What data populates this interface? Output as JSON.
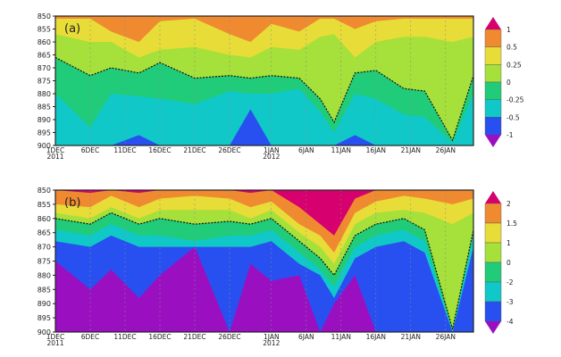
{
  "chart_data": [
    {
      "type": "area",
      "panel_label": "(a)",
      "ylabel_ticks": [
        "850",
        "855",
        "860",
        "865",
        "870",
        "875",
        "880",
        "885",
        "890",
        "895",
        "900"
      ],
      "ylim": [
        850,
        900
      ],
      "y_inverted": true,
      "xlim_days": [
        0,
        60
      ],
      "xticks": [
        {
          "day": 0,
          "label": "1DEC",
          "sub": "2011"
        },
        {
          "day": 5,
          "label": "6DEC"
        },
        {
          "day": 10,
          "label": "11DEC"
        },
        {
          "day": 15,
          "label": "16DEC"
        },
        {
          "day": 20,
          "label": "21DEC"
        },
        {
          "day": 25,
          "label": "26DEC"
        },
        {
          "day": 31,
          "label": "1JAN",
          "sub": "2012"
        },
        {
          "day": 36,
          "label": "6JAN"
        },
        {
          "day": 41,
          "label": "11JAN"
        },
        {
          "day": 46,
          "label": "16JAN"
        },
        {
          "day": 51,
          "label": "21JAN"
        },
        {
          "day": 56,
          "label": "26JAN"
        }
      ],
      "colorbar_labels": [
        "1",
        "0.5",
        "0.25",
        "0",
        "-0.25",
        "-0.5",
        "-1"
      ],
      "band_colors": [
        "#f08a30",
        "#e8dc38",
        "#a6e03a",
        "#20cc7a",
        "#10c8c8",
        "#2850f0"
      ],
      "x_days": [
        0,
        5,
        8,
        12,
        15,
        20,
        25,
        28,
        31,
        35,
        38,
        40,
        43,
        46,
        50,
        53,
        57,
        60
      ],
      "zero_line_index": 2,
      "boundaries": [
        [
          851,
          851,
          856,
          860,
          852,
          851,
          857,
          860,
          853,
          856,
          851,
          851,
          855,
          852,
          851,
          851,
          851,
          851
        ],
        [
          857,
          860,
          860,
          866,
          863,
          862,
          865,
          866,
          862,
          863,
          858,
          857,
          866,
          860,
          858,
          858,
          860,
          858
        ],
        [
          866,
          873,
          870,
          872,
          868,
          874,
          873,
          874,
          873,
          874,
          882,
          891,
          872,
          871,
          878,
          879,
          898,
          873
        ],
        [
          880,
          893,
          880,
          881,
          882,
          884,
          879,
          880,
          880,
          878,
          887,
          895,
          880,
          882,
          888,
          889,
          899,
          880
        ],
        [
          900,
          900,
          900,
          896,
          900,
          900,
          900,
          886,
          900,
          900,
          900,
          900,
          896,
          900,
          900,
          900,
          900,
          900
        ]
      ]
    },
    {
      "type": "area",
      "panel_label": "(b)",
      "ylabel_ticks": [
        "850",
        "855",
        "860",
        "865",
        "870",
        "875",
        "880",
        "885",
        "890",
        "895",
        "900"
      ],
      "ylim": [
        850,
        900
      ],
      "y_inverted": true,
      "xlim_days": [
        0,
        60
      ],
      "xticks": [
        {
          "day": 0,
          "label": "1DEC",
          "sub": "2011"
        },
        {
          "day": 5,
          "label": "6DEC"
        },
        {
          "day": 10,
          "label": "11DEC"
        },
        {
          "day": 15,
          "label": "16DEC"
        },
        {
          "day": 20,
          "label": "21DEC"
        },
        {
          "day": 25,
          "label": "26DEC"
        },
        {
          "day": 31,
          "label": "1JAN",
          "sub": "2012"
        },
        {
          "day": 36,
          "label": "6JAN"
        },
        {
          "day": 41,
          "label": "11JAN"
        },
        {
          "day": 46,
          "label": "16JAN"
        },
        {
          "day": 51,
          "label": "21JAN"
        },
        {
          "day": 56,
          "label": "26JAN"
        }
      ],
      "colorbar_labels": [
        "2",
        "1.5",
        "1",
        "0",
        "-2",
        "-3",
        "-4"
      ],
      "band_colors": [
        "#d6006e",
        "#f08a30",
        "#e8dc38",
        "#a6e03a",
        "#20cc7a",
        "#10c8c8",
        "#2850f0",
        "#9a10c0"
      ],
      "x_days": [
        0,
        5,
        8,
        12,
        15,
        20,
        25,
        28,
        31,
        35,
        38,
        40,
        43,
        46,
        50,
        53,
        57,
        60
      ],
      "zero_line_index": 3,
      "boundaries": [
        [
          850,
          851,
          850,
          851,
          850,
          850,
          850,
          851,
          850,
          856,
          862,
          866,
          853,
          850,
          850,
          850,
          850,
          850
        ],
        [
          855,
          856,
          852,
          856,
          853,
          852,
          853,
          856,
          854,
          862,
          866,
          872,
          858,
          854,
          852,
          853,
          855,
          853
        ],
        [
          858,
          860,
          856,
          860,
          857,
          857,
          857,
          860,
          857,
          865,
          870,
          876,
          862,
          858,
          857,
          858,
          862,
          858
        ],
        [
          860,
          862,
          858,
          862,
          860,
          862,
          861,
          862,
          860,
          868,
          874,
          880,
          866,
          862,
          860,
          864,
          899,
          864
        ],
        [
          864,
          866,
          862,
          866,
          866,
          868,
          866,
          866,
          864,
          872,
          878,
          884,
          870,
          866,
          864,
          868,
          900,
          866
        ],
        [
          868,
          870,
          866,
          870,
          870,
          870,
          870,
          870,
          868,
          876,
          880,
          888,
          874,
          870,
          868,
          872,
          900,
          870
        ],
        [
          875,
          885,
          878,
          888,
          880,
          870,
          900,
          876,
          882,
          880,
          900,
          890,
          880,
          900,
          900,
          900,
          900,
          900
        ]
      ]
    }
  ],
  "colorbar_colors_a": [
    "#d6006e",
    "#f08a30",
    "#e8dc38",
    "#a6e03a",
    "#20cc7a",
    "#10c8c8",
    "#2850f0",
    "#9a10c0"
  ],
  "colorbar_colors_b": [
    "#d6006e",
    "#f08a30",
    "#e8dc38",
    "#a6e03a",
    "#20cc7a",
    "#10c8c8",
    "#2850f0",
    "#9a10c0"
  ]
}
